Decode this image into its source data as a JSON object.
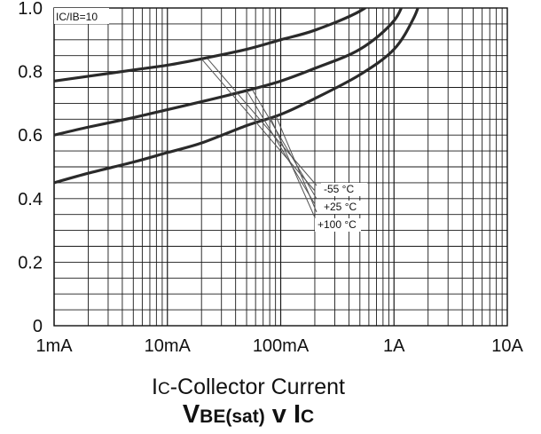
{
  "chart_data": {
    "type": "line",
    "title": "VBE(sat) v IC",
    "title_parts": [
      {
        "text": "V",
        "style": "main"
      },
      {
        "text": "BE(sat)",
        "style": "sub"
      },
      {
        "text": " v ",
        "style": "main"
      },
      {
        "text": "I",
        "style": "main"
      },
      {
        "text": "C",
        "style": "sub"
      }
    ],
    "xlabel": "IC-Collector Current",
    "xlabel_parts": [
      {
        "text": "I",
        "style": "main"
      },
      {
        "text": "C",
        "style": "sub"
      },
      {
        "text": "-Collector Current",
        "style": "main"
      }
    ],
    "ylabel": "",
    "condition_label": "IC/IB=10",
    "x_scale": "log",
    "xlim": [
      0.001,
      10
    ],
    "ylim": [
      0,
      1.0
    ],
    "x_ticks": [
      {
        "value": 0.001,
        "label": "1mA"
      },
      {
        "value": 0.01,
        "label": "10mA"
      },
      {
        "value": 0.1,
        "label": "100mA"
      },
      {
        "value": 1,
        "label": "1A"
      },
      {
        "value": 10,
        "label": "10A"
      }
    ],
    "y_ticks": [
      {
        "value": 0,
        "label": "0"
      },
      {
        "value": 0.2,
        "label": "0.2"
      },
      {
        "value": 0.4,
        "label": "0.4"
      },
      {
        "value": 0.6,
        "label": "0.6"
      },
      {
        "value": 0.8,
        "label": "0.8"
      },
      {
        "value": 1.0,
        "label": "1.0"
      }
    ],
    "grid": true,
    "series": [
      {
        "name": "-55 °C",
        "x": [
          0.001,
          0.002,
          0.005,
          0.01,
          0.02,
          0.05,
          0.1,
          0.2,
          0.5,
          0.8,
          1.0
        ],
        "y": [
          0.77,
          0.785,
          0.805,
          0.82,
          0.84,
          0.87,
          0.9,
          0.93,
          0.99,
          1.05,
          1.1
        ]
      },
      {
        "name": "+25 °C",
        "x": [
          0.001,
          0.002,
          0.005,
          0.01,
          0.02,
          0.05,
          0.1,
          0.2,
          0.5,
          1.0,
          1.3
        ],
        "y": [
          0.6,
          0.625,
          0.655,
          0.68,
          0.705,
          0.74,
          0.77,
          0.81,
          0.87,
          0.96,
          1.05
        ]
      },
      {
        "name": "+100 °C",
        "x": [
          0.001,
          0.002,
          0.005,
          0.01,
          0.02,
          0.05,
          0.1,
          0.2,
          0.5,
          1.0,
          1.5,
          1.8
        ],
        "y": [
          0.45,
          0.48,
          0.515,
          0.545,
          0.575,
          0.63,
          0.665,
          0.715,
          0.79,
          0.87,
          0.97,
          1.05
        ]
      }
    ],
    "legend": {
      "items": [
        "-55 °C",
        "+25 °C",
        "+100 °C"
      ],
      "placement": "inline callouts, right of curves",
      "anchor_points": [
        {
          "x": 0.02,
          "y": 0.84
        },
        {
          "x": 0.05,
          "y": 0.74
        },
        {
          "x": 0.08,
          "y": 0.66
        }
      ]
    },
    "colors": {
      "curve": "#2a2a2a",
      "grid": "#1a1a1a",
      "leader": "#555555",
      "background": "#ffffff"
    }
  }
}
